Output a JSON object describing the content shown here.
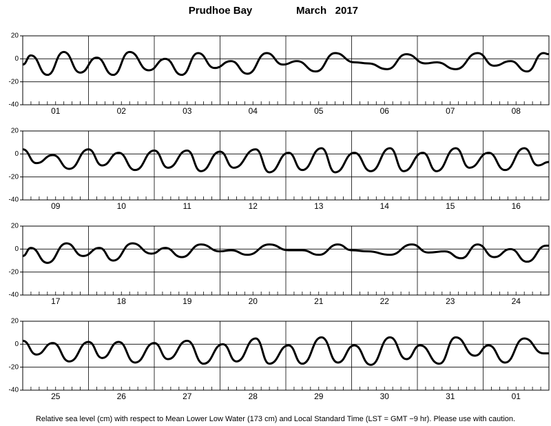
{
  "header": {
    "location": "Prudhoe Bay",
    "period": "March   2017"
  },
  "footer": "Relative sea level (cm) with respect to Mean Lower Low Water (173 cm) and Local Standard Time (LST = GMT −9 hr). Please use with caution.",
  "chart_data": [
    {
      "type": "line",
      "color": "#000000",
      "categories": [
        "01",
        "02",
        "03",
        "04",
        "05",
        "06",
        "07",
        "08"
      ],
      "x": [
        0,
        3,
        9,
        15,
        21,
        27,
        33,
        39,
        46,
        52,
        58,
        64,
        70,
        76,
        82,
        89,
        95,
        100,
        107,
        114,
        121,
        126,
        133,
        140,
        147,
        151,
        158,
        166,
        172,
        178,
        184,
        190,
        192
      ],
      "values": [
        -5,
        3,
        -14,
        6,
        -12,
        1,
        -14,
        6,
        -10,
        0,
        -14,
        5,
        -8,
        -2,
        -13,
        5,
        -5,
        -2,
        -11,
        5,
        -3,
        -4,
        -9,
        4,
        -4,
        -3,
        -9,
        5,
        -6,
        -2,
        -11,
        5,
        4
      ],
      "xlim": [
        0,
        192
      ],
      "xticks": [
        0,
        24,
        48,
        72,
        96,
        120,
        144,
        168,
        192
      ],
      "ylim": [
        -40,
        20
      ],
      "yticks": [
        -40,
        -20,
        0,
        20
      ]
    },
    {
      "type": "line",
      "color": "#000000",
      "categories": [
        "09",
        "10",
        "11",
        "12",
        "13",
        "14",
        "15",
        "16"
      ],
      "x": [
        0,
        5,
        11,
        17,
        24,
        29,
        35,
        41,
        48,
        53,
        60,
        65,
        72,
        77,
        85,
        90,
        97,
        102,
        109,
        114,
        121,
        127,
        134,
        139,
        146,
        151,
        158,
        163,
        170,
        176,
        183,
        188,
        192
      ],
      "values": [
        4,
        -8,
        -1,
        -13,
        4,
        -10,
        1,
        -14,
        3,
        -12,
        3,
        -15,
        2,
        -12,
        4,
        -16,
        1,
        -14,
        5,
        -16,
        1,
        -15,
        5,
        -15,
        1,
        -15,
        5,
        -12,
        1,
        -14,
        5,
        -10,
        -7
      ],
      "xlim": [
        0,
        192
      ],
      "xticks": [
        0,
        24,
        48,
        72,
        96,
        120,
        144,
        168,
        192
      ],
      "ylim": [
        -40,
        20
      ],
      "yticks": [
        -40,
        -20,
        0,
        20
      ]
    },
    {
      "type": "line",
      "color": "#000000",
      "categories": [
        "17",
        "18",
        "19",
        "20",
        "21",
        "22",
        "23",
        "24"
      ],
      "x": [
        0,
        3,
        9,
        16,
        22,
        28,
        33,
        40,
        47,
        52,
        58,
        65,
        72,
        76,
        82,
        90,
        97,
        102,
        108,
        115,
        120,
        126,
        134,
        142,
        148,
        154,
        160,
        166,
        172,
        178,
        184,
        191,
        192
      ],
      "values": [
        -6,
        1,
        -12,
        5,
        -6,
        1,
        -10,
        5,
        -4,
        1,
        -7,
        4,
        -2,
        -1,
        -5,
        4,
        -1,
        -1,
        -5,
        4,
        -1,
        -2,
        -5,
        4,
        -3,
        -2,
        -8,
        4,
        -7,
        0,
        -11,
        3,
        3
      ],
      "xlim": [
        0,
        192
      ],
      "xticks": [
        0,
        24,
        48,
        72,
        96,
        120,
        144,
        168,
        192
      ],
      "ylim": [
        -40,
        20
      ],
      "yticks": [
        -40,
        -20,
        0,
        20
      ]
    },
    {
      "type": "line",
      "color": "#000000",
      "categories": [
        "25",
        "26",
        "27",
        "28",
        "29",
        "30",
        "31",
        "01"
      ],
      "x": [
        0,
        5,
        11,
        17,
        24,
        29,
        35,
        41,
        48,
        53,
        60,
        66,
        73,
        78,
        85,
        90,
        97,
        102,
        109,
        115,
        121,
        127,
        134,
        140,
        145,
        152,
        158,
        165,
        170,
        176,
        183,
        190,
        192
      ],
      "values": [
        3,
        -9,
        1,
        -15,
        2,
        -12,
        2,
        -16,
        1,
        -13,
        3,
        -17,
        0,
        -15,
        5,
        -17,
        -1,
        -17,
        6,
        -16,
        -1,
        -18,
        6,
        -13,
        -1,
        -17,
        6,
        -10,
        -1,
        -16,
        5,
        -8,
        -8
      ],
      "xlim": [
        0,
        192
      ],
      "xticks": [
        0,
        24,
        48,
        72,
        96,
        120,
        144,
        168,
        192
      ],
      "ylim": [
        -40,
        20
      ],
      "yticks": [
        -40,
        -20,
        0,
        20
      ]
    }
  ]
}
